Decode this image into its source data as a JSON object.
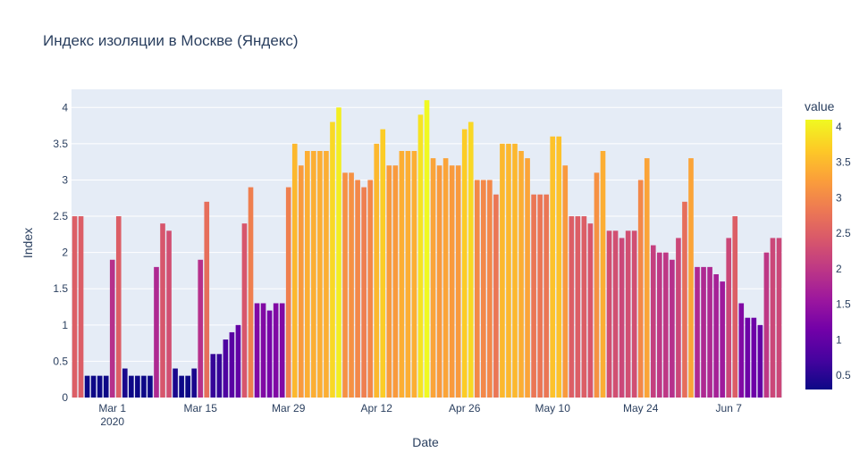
{
  "chart_data": {
    "type": "bar",
    "title": "Индекс изоляции в Москве (Яндекс)",
    "xlabel": "Date",
    "ylabel": "Index",
    "ylim": [
      0,
      4.25
    ],
    "x_start": "2020-02-24",
    "x_tick_labels": [
      {
        "date": "2020-03-01",
        "label": "Mar 1",
        "sublabel": "2020"
      },
      {
        "date": "2020-03-15",
        "label": "Mar 15",
        "sublabel": ""
      },
      {
        "date": "2020-03-29",
        "label": "Mar 29",
        "sublabel": ""
      },
      {
        "date": "2020-04-12",
        "label": "Apr 12",
        "sublabel": ""
      },
      {
        "date": "2020-04-26",
        "label": "Apr 26",
        "sublabel": ""
      },
      {
        "date": "2020-05-10",
        "label": "May 10",
        "sublabel": ""
      },
      {
        "date": "2020-05-24",
        "label": "May 24",
        "sublabel": ""
      },
      {
        "date": "2020-06-07",
        "label": "Jun 7",
        "sublabel": ""
      }
    ],
    "y_ticks": [
      {
        "value": 0,
        "label": "0"
      },
      {
        "value": 0.5,
        "label": "0.5"
      },
      {
        "value": 1,
        "label": "1"
      },
      {
        "value": 1.5,
        "label": "1.5"
      },
      {
        "value": 2,
        "label": "2"
      },
      {
        "value": 2.5,
        "label": "2.5"
      },
      {
        "value": 3,
        "label": "3"
      },
      {
        "value": 3.5,
        "label": "3.5"
      },
      {
        "value": 4,
        "label": "4"
      }
    ],
    "values": [
      2.5,
      2.5,
      0.3,
      0.3,
      0.3,
      0.3,
      1.9,
      2.5,
      0.4,
      0.3,
      0.3,
      0.3,
      0.3,
      1.8,
      2.4,
      2.3,
      0.4,
      0.3,
      0.3,
      0.4,
      1.9,
      2.7,
      0.6,
      0.6,
      0.8,
      0.9,
      1.0,
      2.4,
      2.9,
      1.3,
      1.3,
      1.2,
      1.3,
      1.3,
      2.9,
      3.5,
      3.2,
      3.4,
      3.4,
      3.4,
      3.4,
      3.8,
      4.0,
      3.1,
      3.1,
      3.0,
      2.9,
      3.0,
      3.5,
      3.7,
      3.2,
      3.2,
      3.4,
      3.4,
      3.4,
      3.9,
      4.1,
      3.3,
      3.2,
      3.3,
      3.2,
      3.2,
      3.7,
      3.8,
      3.0,
      3.0,
      3.0,
      2.8,
      3.5,
      3.5,
      3.5,
      3.4,
      3.3,
      2.8,
      2.8,
      2.8,
      3.6,
      3.6,
      3.2,
      2.5,
      2.5,
      2.5,
      2.4,
      3.1,
      3.4,
      2.3,
      2.3,
      2.2,
      2.3,
      2.3,
      3.0,
      3.3,
      2.1,
      2.0,
      2.0,
      1.9,
      2.2,
      2.7,
      3.3,
      1.8,
      1.8,
      1.8,
      1.7,
      1.6,
      2.2,
      2.5,
      1.3,
      1.1,
      1.1,
      1.0,
      2.0,
      2.2,
      2.2
    ],
    "colorbar": {
      "title": "value",
      "range": [
        0.3,
        4.1
      ],
      "tick_labels": [
        {
          "value": 0.5,
          "label": "0.5"
        },
        {
          "value": 1,
          "label": "1"
        },
        {
          "value": 1.5,
          "label": "1.5"
        },
        {
          "value": 2,
          "label": "2"
        },
        {
          "value": 2.5,
          "label": "2.5"
        },
        {
          "value": 3,
          "label": "3"
        },
        {
          "value": 3.5,
          "label": "3.5"
        },
        {
          "value": 4,
          "label": "4"
        }
      ],
      "colorscale": [
        [
          0.0,
          "#0d0887"
        ],
        [
          0.1111,
          "#46039f"
        ],
        [
          0.2222,
          "#7201a8"
        ],
        [
          0.3333,
          "#9c179e"
        ],
        [
          0.4444,
          "#bd3786"
        ],
        [
          0.5556,
          "#d8576b"
        ],
        [
          0.6667,
          "#ed7953"
        ],
        [
          0.7778,
          "#fb9f3a"
        ],
        [
          0.8889,
          "#fdca26"
        ],
        [
          1.0,
          "#f0f921"
        ]
      ]
    },
    "grid": true,
    "plot_background": "#e5ecf6"
  }
}
